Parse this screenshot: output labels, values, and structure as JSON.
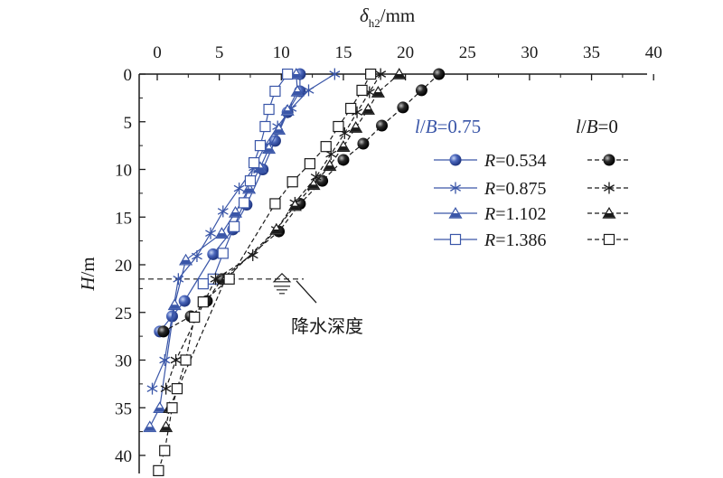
{
  "chart_data": {
    "type": "line",
    "xlabel": "δh2/mm",
    "ylabel": "H/m",
    "x_axis_position": "top",
    "y_axis_inverted": true,
    "xlim": [
      -1,
      40
    ],
    "ylim": [
      0,
      42
    ],
    "x_ticks": [
      0,
      5,
      10,
      15,
      20,
      25,
      30,
      35,
      40
    ],
    "y_ticks": [
      0,
      5,
      10,
      15,
      20,
      25,
      30,
      35,
      40
    ],
    "grid": false,
    "legend": {
      "placement": "right",
      "group_headers": [
        "l/B=0.75",
        "l/B=0"
      ],
      "header_colors": [
        "#3a56a8",
        "#1a1a1a"
      ]
    },
    "annotation": {
      "text": "降水深度",
      "y": 21.5
    },
    "series": [
      {
        "name": "R=0.534",
        "group": "l/B=0.75",
        "marker": "circle",
        "color": "#3a56a8",
        "style": "solid",
        "x": [
          11.5,
          11.5,
          10.5,
          9.5,
          8.5,
          7.2,
          6.1,
          4.5,
          2.2,
          1.2,
          0.2
        ],
        "y": [
          0,
          1.8,
          4,
          7,
          10,
          13.7,
          16.3,
          18.9,
          23.8,
          25.4,
          27.0
        ]
      },
      {
        "name": "R=0.875",
        "group": "l/B=0.75",
        "marker": "star",
        "color": "#3a56a8",
        "style": "solid",
        "x": [
          14.3,
          12.2,
          10.8,
          9.7,
          8.7,
          7.8,
          6.6,
          5.3,
          4.3,
          3.2,
          1.7,
          0.6,
          -0.4
        ],
        "y": [
          0,
          1.7,
          3.6,
          5.5,
          7.5,
          9.8,
          12.0,
          14.4,
          16.7,
          19.1,
          21.5,
          30.0,
          33.0
        ]
      },
      {
        "name": "R=1.102",
        "group": "l/B=0.75",
        "marker": "triangle",
        "color": "#3a56a8",
        "style": "solid",
        "x": [
          11.2,
          11.3,
          10.5,
          9.8,
          9.0,
          8.3,
          7.4,
          6.3,
          5.2,
          2.3,
          1.4,
          0.2,
          -0.6
        ],
        "y": [
          0,
          1.8,
          3.8,
          5.8,
          7.8,
          9.8,
          12.0,
          14.5,
          16.7,
          19.5,
          24.2,
          35.0,
          37.0
        ]
      },
      {
        "name": "R=1.386",
        "group": "l/B=0.75",
        "marker": "square",
        "color": "#3a56a8",
        "style": "solid",
        "x": [
          10.5,
          9.5,
          9.0,
          8.7,
          8.3,
          7.8,
          7.5,
          7.0,
          6.2,
          5.3,
          4.5,
          3.7
        ],
        "y": [
          0,
          1.8,
          3.7,
          5.5,
          7.5,
          9.3,
          11.2,
          13.5,
          16.0,
          18.8,
          21.5,
          22.0
        ]
      },
      {
        "name": "R=0.534",
        "group": "l/B=0",
        "marker": "circle",
        "color": "#1a1a1a",
        "style": "dashed",
        "x": [
          22.7,
          21.3,
          19.8,
          18.1,
          16.6,
          15.0,
          13.3,
          11.5,
          9.8,
          5.2,
          4.0,
          2.7,
          0.5
        ],
        "y": [
          0,
          1.7,
          3.5,
          5.4,
          7.3,
          9.0,
          11.2,
          13.6,
          16.5,
          21.5,
          23.8,
          25.4,
          27.0
        ]
      },
      {
        "name": "R=0.875",
        "group": "l/B=0",
        "marker": "star",
        "color": "#1a1a1a",
        "style": "dashed",
        "x": [
          18.0,
          17.1,
          16.1,
          15.1,
          14.0,
          12.8,
          11.1,
          9.6,
          7.7,
          4.7,
          1.5,
          0.7
        ],
        "y": [
          0,
          1.9,
          4.0,
          6.2,
          8.4,
          10.8,
          13.5,
          16.3,
          19.0,
          21.5,
          30.0,
          33.0
        ]
      },
      {
        "name": "R=1.102",
        "group": "l/B=0",
        "marker": "triangle",
        "color": "#1a1a1a",
        "style": "dashed",
        "x": [
          19.5,
          17.8,
          17.0,
          16.0,
          15.0,
          13.9,
          12.6,
          11.1,
          9.6,
          5.5,
          1.0,
          0.7
        ],
        "y": [
          0,
          1.9,
          3.7,
          5.6,
          7.6,
          9.6,
          11.6,
          13.8,
          16.3,
          21.5,
          35.0,
          37.0
        ]
      },
      {
        "name": "R=1.386",
        "group": "l/B=0",
        "marker": "square",
        "color": "#1a1a1a",
        "style": "dashed",
        "x": [
          17.2,
          16.5,
          15.6,
          14.6,
          13.6,
          12.3,
          10.9,
          9.5,
          5.8,
          3.7,
          3.0,
          2.3,
          1.6,
          1.2,
          0.6,
          0.1
        ],
        "y": [
          0,
          1.7,
          3.6,
          5.5,
          7.6,
          9.4,
          11.3,
          13.6,
          21.5,
          23.9,
          25.5,
          30.0,
          33.0,
          35.0,
          39.5,
          41.6
        ]
      }
    ]
  }
}
